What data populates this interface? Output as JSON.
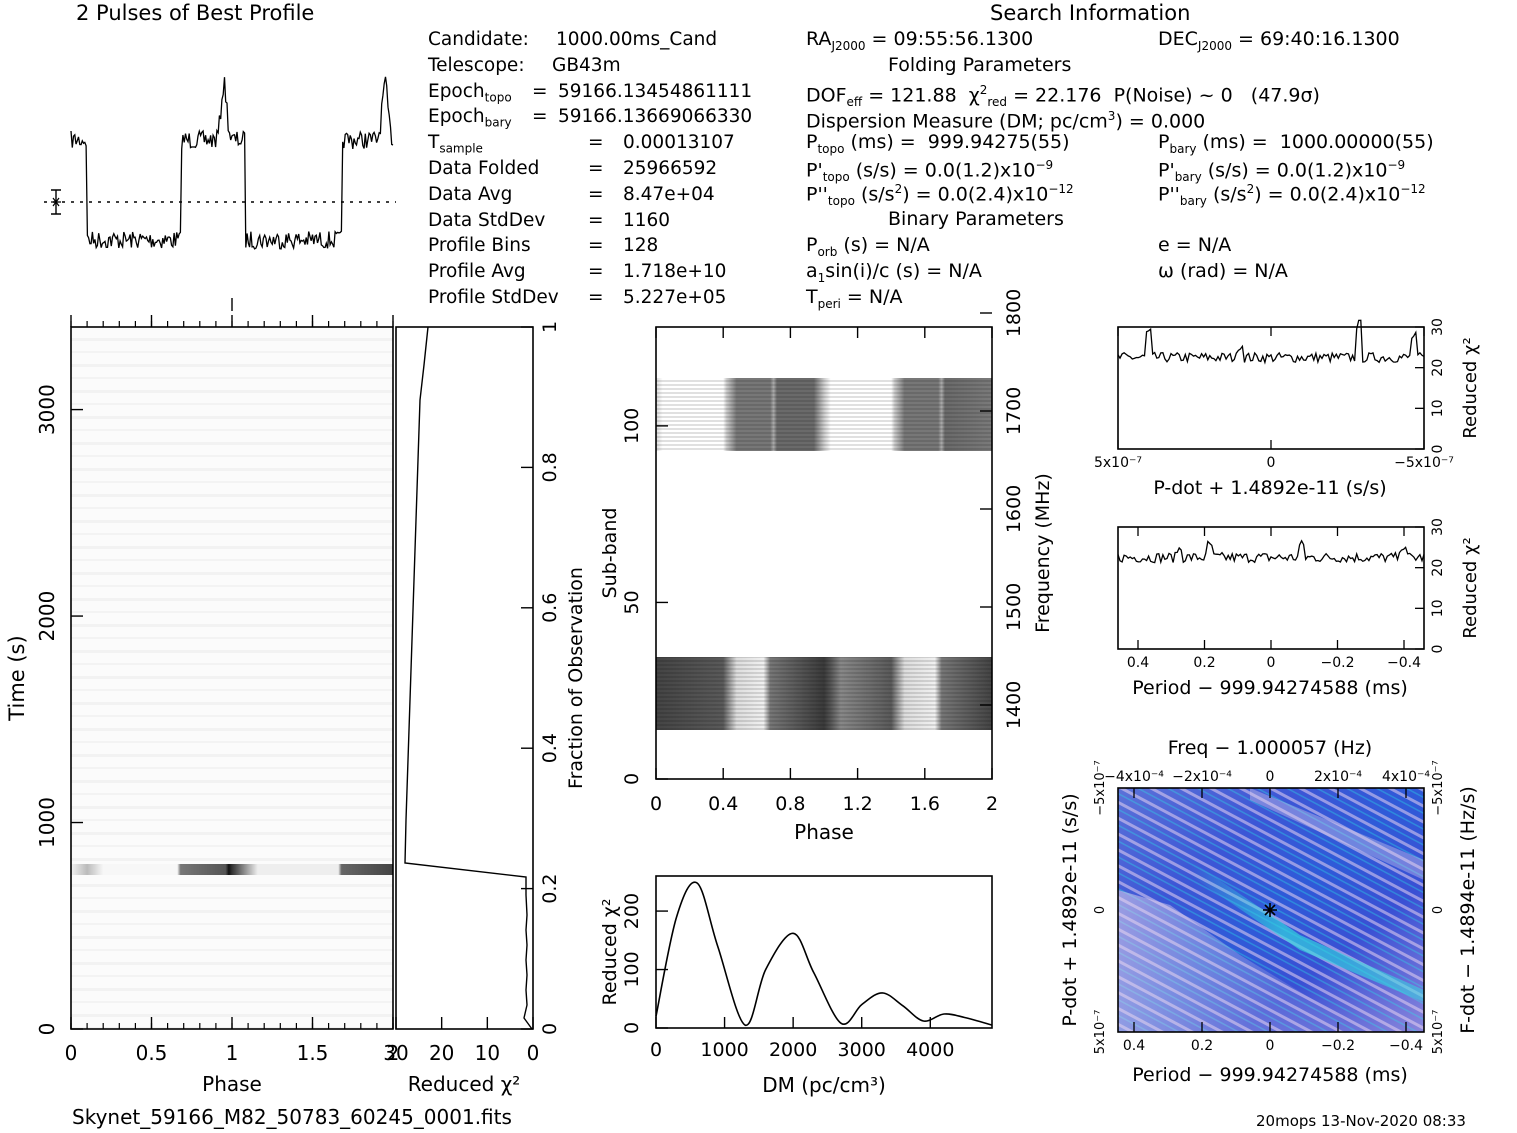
{
  "header": {
    "profile_title": "2 Pulses of Best Profile",
    "search_title": "Search Information",
    "folding_title": "Folding Parameters",
    "binary_title": "Binary Parameters"
  },
  "candidate_info": [
    {
      "label": "Candidate:",
      "eq": "",
      "value": "1000.00ms_Cand"
    },
    {
      "label": "Telescope:",
      "eq": "",
      "value": "GB43m"
    },
    {
      "label": "Epoch",
      "sub": "topo",
      "eq": "=",
      "value": "59166.13454861111"
    },
    {
      "label": "Epoch",
      "sub": "bary",
      "eq": "=",
      "value": "59166.13669066330"
    },
    {
      "label": "T",
      "sub": "sample",
      "eq": "=",
      "value": "0.00013107"
    },
    {
      "label": "Data Folded",
      "eq": "=",
      "value": "25966592"
    },
    {
      "label": "Data Avg",
      "eq": "=",
      "value": "8.47e+04"
    },
    {
      "label": "Data StdDev",
      "eq": "=",
      "value": "1160"
    },
    {
      "label": "Profile Bins",
      "eq": "=",
      "value": "128"
    },
    {
      "label": "Profile Avg",
      "eq": "=",
      "value": "1.718e+10"
    },
    {
      "label": "Profile StdDev",
      "eq": "=",
      "value": "5.227e+05"
    }
  ],
  "search_info": {
    "ra": "RA<sub>J2000</sub> = 09:55:56.1300",
    "dec": "DEC<sub>J2000</sub> = 69:40:16.1300",
    "dof": "DOF<sub>eff</sub> = 121.88&nbsp; &chi;<sup>2</sup><sub>red</sub> = 22.176&nbsp; P(Noise) ~ 0 &nbsp;&nbsp;(47.9&sigma;)",
    "dm": "Dispersion Measure (DM; pc/cm<sup>3</sup>) = 0.000",
    "ptopo": "P<sub>topo</sub> (ms) = &nbsp;999.94275(55)",
    "pbary": "P<sub>bary</sub> (ms) = &nbsp;1000.00000(55)",
    "pdtopo": "P'<sub>topo</sub> (s/s) = 0.0(1.2)x10<sup>&minus;9</sup>",
    "pdbary": "P'<sub>bary</sub> (s/s) = 0.0(1.2)x10<sup>&minus;9</sup>",
    "pddtopo": "P''<sub>topo</sub> (s/s<sup>2</sup>) = 0.0(2.4)x10<sup>&minus;12</sup>",
    "pddbary": "P''<sub>bary</sub> (s/s<sup>2</sup>) = 0.0(2.4)x10<sup>&minus;12</sup>",
    "porb": "P<sub>orb</sub> (s) = N/A",
    "ecc": "e = N/A",
    "asini": "a<sub>1</sub>sin(i)/c (s) = N/A",
    "omega": "&omega; (rad) = N/A",
    "tperi": "T<sub>peri</sub> = N/A"
  },
  "footer": {
    "filename": "Skynet_59166_M82_50783_60245_0001.fits",
    "stamp": "20mops 13-Nov-2020 08:33"
  },
  "chart_data": [
    {
      "type": "line",
      "title": "2 Pulses of Best Profile",
      "xlabel": "",
      "ylabel": "",
      "description_values": {
        "phase_high_ranges": [
          [
            0.0,
            0.1
          ],
          [
            0.68,
            1.08
          ],
          [
            1.68,
            2.0
          ]
        ],
        "phase_low_ranges": [
          [
            0.1,
            0.68
          ],
          [
            1.08,
            1.68
          ]
        ]
      }
    },
    {
      "type": "heatmap",
      "xlabel": "Phase",
      "ylabel": "Time (s)",
      "x_ticks": [
        "0",
        "0.5",
        "1",
        "1.5",
        "2"
      ],
      "y_ticks": [
        "0",
        "1000",
        "2000",
        "3000"
      ],
      "xlim": [
        0,
        2
      ],
      "ylim": [
        0,
        3400
      ],
      "bright_row_time_s": 780
    },
    {
      "type": "line",
      "xlabel": "Reduced χ²",
      "ylabel": "Fraction of Observation",
      "x_ticks": [
        "30",
        "20",
        "10",
        "0"
      ],
      "y_ticks": [
        "0",
        "0.2",
        "0.4",
        "0.6",
        "0.8",
        "1"
      ],
      "xlim": [
        30,
        0
      ],
      "ylim": [
        0,
        1
      ]
    },
    {
      "type": "heatmap",
      "xlabel": "Phase",
      "ylabel": "Sub-band",
      "ylabel_right": "Frequency (MHz)",
      "x_ticks": [
        "0",
        "0.4",
        "0.8",
        "1.2",
        "1.6",
        "2"
      ],
      "y_ticks": [
        "0",
        "50",
        "100"
      ],
      "y_ticks_right": [
        "1400",
        "1500",
        "1600",
        "1700",
        "1800"
      ],
      "xlim": [
        0,
        2
      ],
      "ylim": [
        0,
        128
      ]
    },
    {
      "type": "line",
      "xlabel": "DM (pc/cm³)",
      "ylabel": "Reduced χ²",
      "x_ticks": [
        "0",
        "1000",
        "2000",
        "3000",
        "4000"
      ],
      "y_ticks": [
        "0",
        "100",
        "200"
      ],
      "xlim": [
        0,
        4900
      ],
      "ylim": [
        0,
        260
      ],
      "x": [
        0,
        300,
        600,
        900,
        1300,
        1600,
        2000,
        2300,
        2700,
        3000,
        3300,
        3600,
        3900,
        4200,
        4500,
        4900
      ],
      "y": [
        20,
        190,
        248,
        140,
        5,
        100,
        162,
        95,
        8,
        40,
        60,
        38,
        12,
        24,
        18,
        5
      ]
    },
    {
      "type": "line",
      "xlabel": "P-dot + 1.4892e-11 (s/s)",
      "ylabel": "Reduced χ²",
      "x_ticks": [
        "5x10⁻⁷",
        "0",
        "−5x10⁻⁷"
      ],
      "y_ticks": [
        "0",
        "10",
        "20",
        "30"
      ],
      "xlim": [
        5e-07,
        -5e-07
      ],
      "ylim": [
        0,
        30
      ],
      "y_typical": 22.5
    },
    {
      "type": "line",
      "xlabel": "Period − 999.94274588 (ms)",
      "ylabel": "Reduced χ²",
      "x_ticks": [
        "0.4",
        "0.2",
        "0",
        "−0.2",
        "−0.4"
      ],
      "y_ticks": [
        "0",
        "10",
        "20",
        "30"
      ],
      "xlim": [
        0.45,
        -0.45
      ],
      "ylim": [
        0,
        30
      ],
      "y_typical": 22.5
    },
    {
      "type": "heatmap",
      "title": "Freq − 1.000057 (Hz)",
      "xlabel": "Period − 999.94274588 (ms)",
      "ylabel": "P-dot + 1.4892e-11 (s/s)",
      "ylabel_right": "F-dot − 1.4894e-11 (Hz/s)",
      "x_ticks": [
        "0.4",
        "0.2",
        "0",
        "−0.2",
        "−0.4"
      ],
      "x_ticks_top": [
        "−4x10⁻⁴",
        "−2x10⁻⁴",
        "0",
        "2x10⁻⁴",
        "4x10⁻⁴"
      ],
      "y_ticks_left": [
        "5x10⁻⁷",
        "0",
        "−5x10⁻⁷"
      ],
      "y_ticks_right": [
        "−5x10⁻⁷",
        "0",
        "5x10⁻⁷"
      ],
      "colors": {
        "base": "#3a5bd8",
        "ridge": "#33d8e0",
        "pale": "#d8c8ea"
      }
    }
  ]
}
